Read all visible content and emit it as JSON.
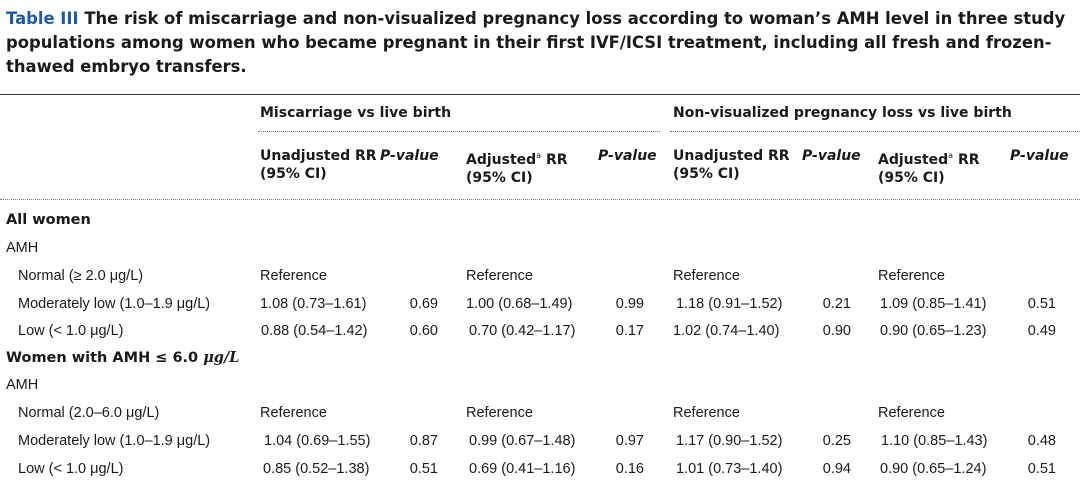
{
  "caption": {
    "label": "Table III",
    "text": " The risk of miscarriage and non-visualized pregnancy loss according to woman’s AMH level in three study populations among women who became pregnant in their first IVF/ICSI treatment, including all fresh and frozen-thawed embryo transfers."
  },
  "groups": {
    "miscarriage": "Miscarriage vs live birth",
    "nonvis": "Non-visualized pregnancy loss vs live birth"
  },
  "cols": {
    "unadj_line1": "Unadjusted RR",
    "unadj_line2": "(95% CI)",
    "pvalue": "P-value",
    "adj_prefix": "Adjusted",
    "adj_sup": "a",
    "adj_suffix": " RR",
    "adj_line2": "(95% CI)"
  },
  "sections": [
    {
      "title": "All women",
      "sublabel": "AMH",
      "rows": [
        {
          "label": "Normal (≥ 2.0 μg/L)",
          "cells": [
            "Reference",
            "",
            "Reference",
            "",
            "Reference",
            "",
            "Reference",
            ""
          ]
        },
        {
          "label": "Moderately low (1.0–1.9 μg/L)",
          "cells": [
            "1.08 (0.73–1.61)",
            "0.69",
            "1.00 (0.68–1.49)",
            "0.99",
            "1.18 (0.91–1.52)",
            "0.21",
            "1.09 (0.85–1.41)",
            "0.51"
          ]
        },
        {
          "label": "Low (< 1.0 μg/L)",
          "cells": [
            "0.88 (0.54–1.42)",
            "0.60",
            "0.70 (0.42–1.17)",
            "0.17",
            "1.02 (0.74–1.40)",
            "0.90",
            "0.90 (0.65–1.23)",
            "0.49"
          ]
        }
      ]
    },
    {
      "title_prefix": "Women with AMH ≤ 6.0 ",
      "title_unit": "μg/L",
      "sublabel": "AMH",
      "rows": [
        {
          "label": "Normal (2.0–6.0 μg/L)",
          "cells": [
            "Reference",
            "",
            "Reference",
            "",
            "Reference",
            "",
            "Reference",
            ""
          ]
        },
        {
          "label": "Moderately low (1.0–1.9 μg/L)",
          "cells": [
            "1.04 (0.69–1.55)",
            "0.87",
            "0.99 (0.67–1.48)",
            "0.97",
            "1.17 (0.90–1.52)",
            "0.25",
            "1.10 (0.85–1.43)",
            "0.48"
          ]
        },
        {
          "label": "Low (< 1.0 μg/L)",
          "cells": [
            "0.85 (0.52–1.38)",
            "0.51",
            "0.69 (0.41–1.16)",
            "0.16",
            "1.01 (0.73–1.40)",
            "0.94",
            "0.90 (0.65–1.24)",
            "0.51"
          ]
        }
      ]
    }
  ]
}
